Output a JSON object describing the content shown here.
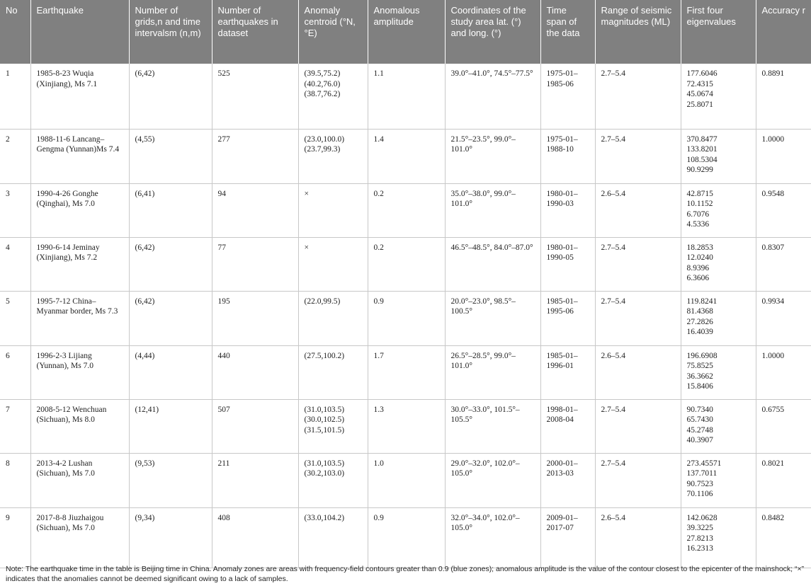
{
  "table": {
    "headers": [
      "No",
      "Earthquake",
      "Number of grids,n and time intervalsm (n,m)",
      "Number of earthquakes in dataset",
      "Anomaly centroid (°N, °E)",
      "Anomalous amplitude",
      "Coordinates of the study area lat. (°) and long. (°)",
      "Time span of the data",
      "Range of seismic magnitudes (ML)",
      "First four eigenvalues",
      "Accuracy r"
    ],
    "rows": [
      {
        "no": "1",
        "earthquake": "1985-8-23 Wuqia (Xinjiang), Ms 7.1",
        "grids": "(6,42)",
        "count": "525",
        "centroid": [
          "(39.5,75.2)",
          "(40.2,76.0)",
          "(38.7,76.2)"
        ],
        "amplitude": "1.1",
        "coords": "39.0°–41.0°, 74.5°–77.5°",
        "timespan": "1975-01–1985-06",
        "magnitudes": "2.7–5.4",
        "eigen": [
          "177.6046",
          "72.4315",
          "45.0674",
          "25.8071"
        ],
        "accuracy": "0.8891"
      },
      {
        "no": "2",
        "earthquake": "1988-11-6 Lancang–Gengma (Yunnan)Ms 7.4",
        "grids": "(4,55)",
        "count": "277",
        "centroid": [
          "(23.0,100.0)",
          "(23.7,99.3)"
        ],
        "amplitude": "1.4",
        "coords": "21.5°–23.5°, 99.0°–101.0°",
        "timespan": "1975-01–1988-10",
        "magnitudes": "2.7–5.4",
        "eigen": [
          "370.8477",
          "133.8201",
          "108.5304",
          "90.9299"
        ],
        "accuracy": "1.0000"
      },
      {
        "no": "3",
        "earthquake": "1990-4-26 Gonghe (Qinghai), Ms 7.0",
        "grids": "(6,41)",
        "count": "94",
        "centroid": [
          "×"
        ],
        "amplitude": "0.2",
        "coords": "35.0°–38.0°, 99.0°–101.0°",
        "timespan": "1980-01–1990-03",
        "magnitudes": "2.6–5.4",
        "eigen": [
          "42.8715",
          "10.1152",
          "6.7076",
          "4.5336"
        ],
        "accuracy": "0.9548"
      },
      {
        "no": "4",
        "earthquake": "1990-6-14 Jeminay (Xinjiang), Ms 7.2",
        "grids": "(6,42)",
        "count": "77",
        "centroid": [
          "×"
        ],
        "amplitude": "0.2",
        "coords": "46.5°–48.5°, 84.0°–87.0°",
        "timespan": "1980-01–1990-05",
        "magnitudes": "2.7–5.4",
        "eigen": [
          "18.2853",
          "12.0240",
          "8.9396",
          "6.3606"
        ],
        "accuracy": "0.8307"
      },
      {
        "no": "5",
        "earthquake": "1995-7-12 China–Myanmar border, Ms 7.3",
        "grids": "(6,42)",
        "count": "195",
        "centroid": [
          "(22.0,99.5)"
        ],
        "amplitude": "0.9",
        "coords": "20.0°–23.0°, 98.5°–100.5°",
        "timespan": "1985-01–1995-06",
        "magnitudes": "2.7–5.4",
        "eigen": [
          "119.8241",
          "81.4368",
          "27.2826",
          "16.4039"
        ],
        "accuracy": "0.9934"
      },
      {
        "no": "6",
        "earthquake": "1996-2-3 Lijiang (Yunnan), Ms 7.0",
        "grids": "(4,44)",
        "count": "440",
        "centroid": [
          "(27.5,100.2)"
        ],
        "amplitude": "1.7",
        "coords": "26.5°–28.5°, 99.0°–101.0°",
        "timespan": "1985-01–1996-01",
        "magnitudes": "2.6–5.4",
        "eigen": [
          "196.6908",
          "75.8525",
          "36.3662",
          "15.8406"
        ],
        "accuracy": "1.0000"
      },
      {
        "no": "7",
        "earthquake": "2008-5-12 Wenchuan (Sichuan), Ms 8.0",
        "grids": "(12,41)",
        "count": "507",
        "centroid": [
          "(31.0,103.5)",
          "(30.0,102.5)",
          "(31.5,101.5)"
        ],
        "amplitude": "1.3",
        "coords": "30.0°–33.0°, 101.5°–105.5°",
        "timespan": "1998-01–2008-04",
        "magnitudes": "2.7–5.4",
        "eigen": [
          "90.7340",
          "65.7430",
          "45.2748",
          "40.3907"
        ],
        "accuracy": "0.6755"
      },
      {
        "no": "8",
        "earthquake": "2013-4-2 Lushan (Sichuan), Ms 7.0",
        "grids": "(9,53)",
        "count": "211",
        "centroid": [
          "(31.0,103.5)",
          "(30.2,103.0)"
        ],
        "amplitude": "1.0",
        "coords": "29.0°–32.0°, 102.0°–105.0°",
        "timespan": "2000-01–2013-03",
        "magnitudes": "2.7–5.4",
        "eigen": [
          "273.45571",
          "137.7011",
          "90.7523",
          "70.1106"
        ],
        "accuracy": "0.8021"
      },
      {
        "no": "9",
        "earthquake": "2017-8-8 Jiuzhaigou (Sichuan), Ms 7.0",
        "grids": "(9,34)",
        "count": "408",
        "centroid": [
          "(33.0,104.2)"
        ],
        "amplitude": "0.9",
        "coords": "32.0°–34.0°, 102.0°–105.0°",
        "timespan": "2009-01–2017-07",
        "magnitudes": "2.6–5.4",
        "eigen": [
          "142.0628",
          "39.3225",
          "27.8213",
          "16.2313"
        ],
        "accuracy": "0.8482"
      }
    ]
  },
  "note": "Note: The earthquake time in the table is Beijing time in China. Anomaly zones are areas with frequency-field contours greater than 0.9 (blue zones); anomalous amplitude is the value of the contour closest to the epicenter of the mainshock; “×” indicates that the anomalies cannot be deemed significant owing to a lack of samples."
}
